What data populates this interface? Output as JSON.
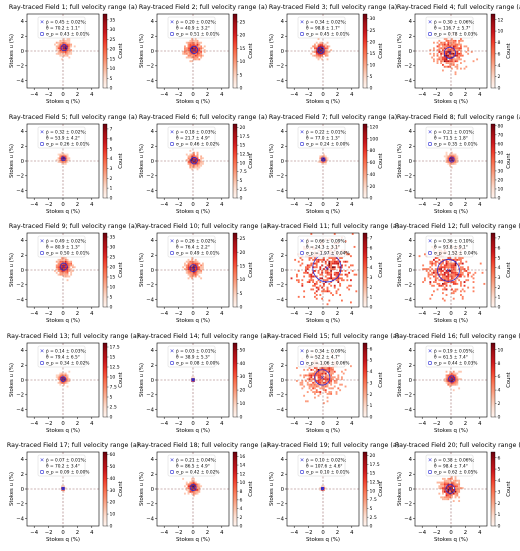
{
  "figure": {
    "xlabel": "Stokes q (%)",
    "ylabel": "Stokes u (%)",
    "cbar_label": "Count",
    "legend_labels": [
      "p̄ = {p}",
      "θ̄ = {t}",
      "σ_p = {s}"
    ],
    "ticks": [
      "−4",
      "−2",
      "0",
      "2",
      "4"
    ]
  },
  "chart_data": [
    {
      "type": "heatmap",
      "title": "Ray-traced Field 1; full velocity range (a)",
      "p": "0.45 ± 0.02%;",
      "theta": "70.2 ± 1.1°",
      "sigma": "0.43 ± 0.01%",
      "center": [
        0.15,
        0.45
      ],
      "sigma_val": 0.43,
      "spread": 0.45,
      "cbar_ticks": [
        0,
        5,
        10,
        15,
        20,
        25,
        30,
        35
      ],
      "cbar_max": 38,
      "density": 0.55
    },
    {
      "type": "heatmap",
      "title": "Ray-traced Field 2; full velocity range (a)",
      "p": "0.20 ± 0.02%;",
      "theta": "40.9 ± 3.2°",
      "sigma": "0.51 ± 0.01%",
      "center": [
        0.15,
        0.15
      ],
      "sigma_val": 0.51,
      "spread": 0.55,
      "cbar_ticks": [
        0,
        5,
        10,
        15,
        20,
        25
      ],
      "cbar_max": 28,
      "density": 0.5
    },
    {
      "type": "heatmap",
      "title": "Ray-traced Field 3; full velocity range (a)",
      "p": "0.34 ± 0.02%;",
      "theta": "98.8 ± 1.7°",
      "sigma": "0.45 ± 0.01%",
      "center": [
        -0.3,
        0.1
      ],
      "sigma_val": 0.45,
      "spread": 0.45,
      "cbar_ticks": [
        0,
        5,
        10,
        15,
        20,
        25,
        30
      ],
      "cbar_max": 32,
      "density": 0.55
    },
    {
      "type": "heatmap",
      "title": "Ray-traced Field 4; full velocity range (a)",
      "p": "0.30 ± 0.06%;",
      "theta": "116.7 ± 5.7°",
      "sigma": "0.78 ± 0.03%",
      "center": [
        -0.15,
        -0.25
      ],
      "sigma_val": 0.78,
      "spread": 1.0,
      "cbar_ticks": [
        0,
        2,
        4,
        6,
        8,
        10,
        12
      ],
      "cbar_max": 13,
      "density": 0.45
    },
    {
      "type": "heatmap",
      "title": "Ray-traced Field 5; full velocity range (a)",
      "p": "0.32 ± 0.02%;",
      "theta": "53.9 ± 4.2°",
      "sigma": "0.26 ± 0.01%",
      "center": [
        0.05,
        0.3
      ],
      "sigma_val": 0.26,
      "spread": 0.25,
      "cbar_ticks": [
        0,
        1,
        2,
        3,
        4,
        5,
        6,
        7
      ],
      "cbar_max": 7.5,
      "density": 0.6
    },
    {
      "type": "heatmap",
      "title": "Ray-traced Field 6; full velocity range (a)",
      "p": "0.18 ± 0.03%;",
      "theta": "21.7 ± 4.9°",
      "sigma": "0.46 ± 0.02%",
      "center": [
        0.15,
        0.05
      ],
      "sigma_val": 0.46,
      "spread": 0.4,
      "cbar_ticks": [
        0.0,
        2.5,
        5.0,
        7.5,
        10.0,
        12.5,
        15.0,
        17.5,
        20.0
      ],
      "cbar_max": 21,
      "density": 0.5
    },
    {
      "type": "heatmap",
      "title": "Ray-traced Field 7; full velocity range (a)",
      "p": "0.22 ± 0.01%;",
      "theta": "77.0 ± 1.3°",
      "sigma": "0.24 ± 0.00%",
      "center": [
        0.05,
        0.2
      ],
      "sigma_val": 0.24,
      "spread": 0.2,
      "cbar_ticks": [
        0,
        20,
        40,
        60,
        80,
        100,
        120
      ],
      "cbar_max": 125,
      "density": 0.6
    },
    {
      "type": "heatmap",
      "title": "Ray-traced Field 8; full velocity range (a)",
      "p": "0.21 ± 0.01%;",
      "theta": "71.5 ± 1.8°",
      "sigma": "0.35 ± 0.01%",
      "center": [
        0.1,
        0.2
      ],
      "sigma_val": 0.35,
      "spread": 0.3,
      "cbar_ticks": [
        0,
        10,
        20,
        30,
        40,
        50,
        60,
        70,
        80
      ],
      "cbar_max": 82,
      "density": 0.55
    },
    {
      "type": "heatmap",
      "title": "Ray-traced Field 9; full velocity range (a)",
      "p": "0.49 ± 0.02%;",
      "theta": "80.9 ± 1.3°",
      "sigma": "0.50 ± 0.01%",
      "center": [
        0.1,
        0.45
      ],
      "sigma_val": 0.5,
      "spread": 0.5,
      "cbar_ticks": [
        0,
        5,
        10,
        15,
        20,
        25,
        30,
        35
      ],
      "cbar_max": 37,
      "density": 0.5
    },
    {
      "type": "heatmap",
      "title": "Ray-traced Field 10; full velocity range (a)",
      "p": "0.26 ± 0.02%;",
      "theta": "76.4 ± 2.2°",
      "sigma": "0.49 ± 0.01%",
      "center": [
        0.05,
        0.25
      ],
      "sigma_val": 0.49,
      "spread": 0.5,
      "cbar_ticks": [
        0,
        5,
        10,
        15,
        20,
        25
      ],
      "cbar_max": 27,
      "density": 0.5
    },
    {
      "type": "heatmap",
      "title": "Ray-traced Field 11; full velocity range (a)",
      "p": "0.66 ± 0.09%;",
      "theta": "24.3 ± 3.1°",
      "sigma": "1.97 ± 0.04%",
      "center": [
        0.55,
        0.3
      ],
      "sigma_val": 1.97,
      "spread": 1.9,
      "cbar_ticks": [
        0,
        1,
        2,
        3,
        4,
        5,
        6,
        7
      ],
      "cbar_max": 7.5,
      "density": 0.35
    },
    {
      "type": "heatmap",
      "title": "Ray-traced Field 12; full velocity range (a)",
      "p": "0.36 ± 0.10%;",
      "theta": "93.8 ± 9.1°",
      "sigma": "1.52 ± 0.04%",
      "center": [
        -0.35,
        -0.05
      ],
      "sigma_val": 1.52,
      "spread": 1.5,
      "cbar_ticks": [
        0,
        1,
        2,
        3,
        4,
        5,
        6,
        7
      ],
      "cbar_max": 7.5,
      "density": 0.35
    },
    {
      "type": "heatmap",
      "title": "Ray-traced Field 13; full velocity range (a)",
      "p": "0.14 ± 0.03%;",
      "theta": "79.4 ± 6.5°",
      "sigma": "0.34 ± 0.02%",
      "center": [
        0.02,
        0.13
      ],
      "sigma_val": 0.34,
      "spread": 0.3,
      "cbar_ticks": [
        0.0,
        2.5,
        5.0,
        7.5,
        10.0,
        12.5,
        15.0,
        17.5
      ],
      "cbar_max": 18.5,
      "density": 0.5
    },
    {
      "type": "heatmap",
      "title": "Ray-traced Field 14; full velocity range (a)",
      "p": "0.03 ± 0.01%;",
      "theta": "38.9 ± 5.3°",
      "sigma": "0.08 ± 0.00%",
      "center": [
        0.01,
        0.03
      ],
      "sigma_val": 0.08,
      "spread": 0.08,
      "cbar_ticks": [
        0,
        10,
        20,
        30,
        40,
        50
      ],
      "cbar_max": 55,
      "density": 0.7
    },
    {
      "type": "heatmap",
      "title": "Ray-traced Field 15; full velocity range (a)",
      "p": "0.34 ± 0.09%;",
      "theta": "52.2 ± 4.7°",
      "sigma": "1.06 ± 0.06%",
      "center": [
        -0.1,
        0.35
      ],
      "sigma_val": 1.06,
      "spread": 1.2,
      "cbar_ticks": [
        0,
        1,
        2,
        3,
        4,
        5,
        6
      ],
      "cbar_max": 6.5,
      "density": 0.35
    },
    {
      "type": "heatmap",
      "title": "Ray-traced Field 16; full velocity range (a)",
      "p": "0.19 ± 0.05%;",
      "theta": "61.5 ± 7.4°",
      "sigma": "0.44 ± 0.03%",
      "center": [
        0.1,
        0.15
      ],
      "sigma_val": 0.44,
      "spread": 0.4,
      "cbar_ticks": [
        0,
        2,
        4,
        6,
        8,
        10
      ],
      "cbar_max": 11,
      "density": 0.5
    },
    {
      "type": "heatmap",
      "title": "Ray-traced Field 17; full velocity range (a)",
      "p": "0.07 ± 0.01%;",
      "theta": "70.2 ± 3.4°",
      "sigma": "0.09 ± 0.00%",
      "center": [
        0.02,
        0.07
      ],
      "sigma_val": 0.09,
      "spread": 0.1,
      "cbar_ticks": [
        0,
        10,
        20,
        30,
        40,
        50,
        60
      ],
      "cbar_max": 62,
      "density": 0.7
    },
    {
      "type": "heatmap",
      "title": "Ray-traced Field 18; full velocity range (a)",
      "p": "0.21 ± 0.04%;",
      "theta": "86.5 ± 4.9°",
      "sigma": "0.42 ± 0.02%",
      "center": [
        0.02,
        0.2
      ],
      "sigma_val": 0.42,
      "spread": 0.4,
      "cbar_ticks": [
        0,
        2,
        4,
        6,
        8,
        10,
        12,
        14,
        16
      ],
      "cbar_max": 17,
      "density": 0.5
    },
    {
      "type": "heatmap",
      "title": "Ray-traced Field 19; full velocity range (a)",
      "p": "0.10 ± 0.02%;",
      "theta": "107.6 ± 4.6°",
      "sigma": "0.10 ± 0.01%",
      "center": [
        -0.06,
        0.05
      ],
      "sigma_val": 0.1,
      "spread": 0.1,
      "cbar_ticks": [
        0.0,
        2.5,
        5.0,
        7.5,
        10.0,
        12.5,
        15.0,
        17.5,
        20.0
      ],
      "cbar_max": 21,
      "density": 0.7
    },
    {
      "type": "heatmap",
      "title": "Ray-traced Field 20; full velocity range (a)",
      "p": "0.38 ± 0.06%;",
      "theta": "98.4 ± 7.4°",
      "sigma": "0.62 ± 0.05%",
      "center": [
        -0.1,
        0.0
      ],
      "sigma_val": 0.62,
      "spread": 0.6,
      "cbar_ticks": [
        0,
        1,
        2,
        3,
        4,
        5,
        6
      ],
      "cbar_max": 6.5,
      "density": 0.45
    }
  ]
}
